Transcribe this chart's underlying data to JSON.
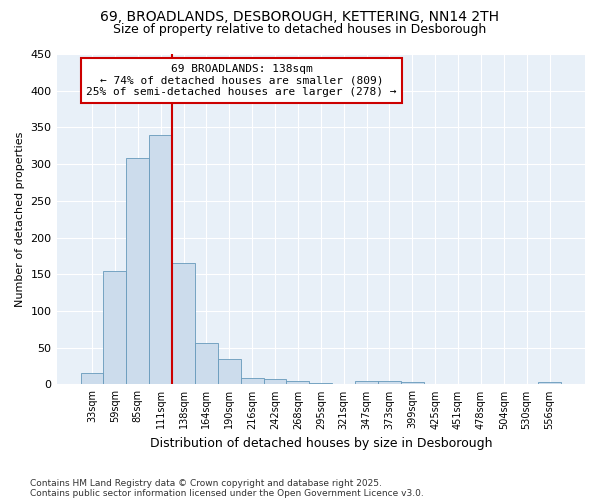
{
  "title1": "69, BROADLANDS, DESBOROUGH, KETTERING, NN14 2TH",
  "title2": "Size of property relative to detached houses in Desborough",
  "xlabel": "Distribution of detached houses by size in Desborough",
  "ylabel": "Number of detached properties",
  "categories": [
    "33sqm",
    "59sqm",
    "85sqm",
    "111sqm",
    "138sqm",
    "164sqm",
    "190sqm",
    "216sqm",
    "242sqm",
    "268sqm",
    "295sqm",
    "321sqm",
    "347sqm",
    "373sqm",
    "399sqm",
    "425sqm",
    "451sqm",
    "478sqm",
    "504sqm",
    "530sqm",
    "556sqm"
  ],
  "values": [
    15,
    155,
    308,
    340,
    165,
    57,
    34,
    9,
    7,
    5,
    2,
    0,
    4,
    4,
    3,
    0,
    0,
    0,
    0,
    0,
    3
  ],
  "bar_color": "#ccdcec",
  "bar_edge_color": "#6699bb",
  "vline_color": "#cc0000",
  "annotation_line1": "69 BROADLANDS: 138sqm",
  "annotation_line2": "← 74% of detached houses are smaller (809)",
  "annotation_line3": "25% of semi-detached houses are larger (278) →",
  "annotation_box_color": "white",
  "annotation_box_edge": "#cc0000",
  "ylim": [
    0,
    450
  ],
  "yticks": [
    0,
    50,
    100,
    150,
    200,
    250,
    300,
    350,
    400,
    450
  ],
  "footer1": "Contains HM Land Registry data © Crown copyright and database right 2025.",
  "footer2": "Contains public sector information licensed under the Open Government Licence v3.0.",
  "bg_color": "#ffffff",
  "plot_bg_color": "#e8f0f8",
  "grid_color": "#ffffff",
  "title_fontsize": 10,
  "subtitle_fontsize": 9,
  "bar_width": 1.0,
  "vline_index": 4
}
